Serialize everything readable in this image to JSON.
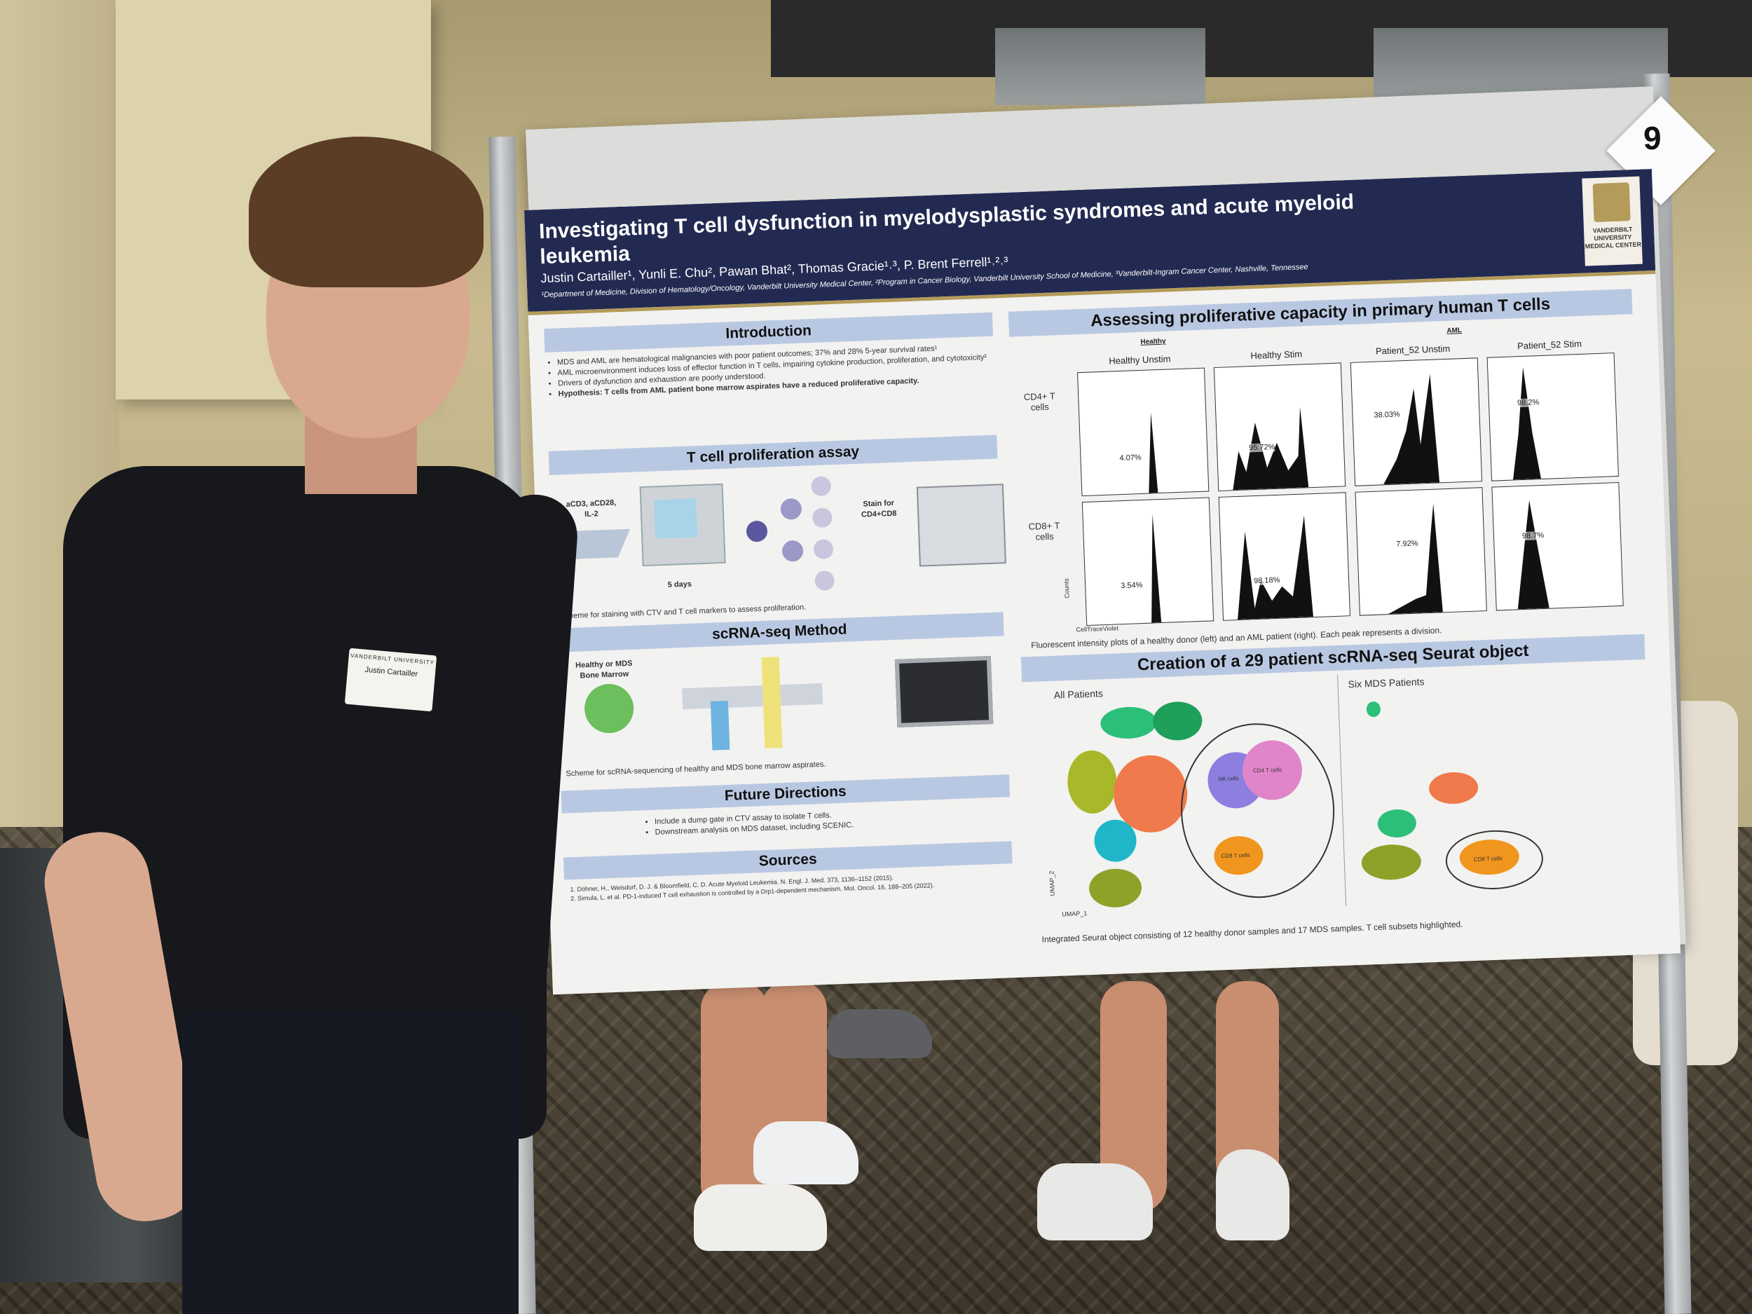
{
  "poster": {
    "title": "Investigating T cell dysfunction in myelodysplastic syndromes and acute myeloid leukemia",
    "authors": "Justin Cartailler¹, Yunli E. Chu², Pawan Bhat², Thomas Gracie¹˒³, P. Brent Ferrell¹˒²˒³",
    "affiliations": "¹Department of Medicine, Division of Hematology/Oncology, Vanderbilt University Medical Center, ²Program in Cancer Biology, Vanderbilt University School of Medicine, ³Vanderbilt-Ingram Cancer Center, Nashville, Tennessee",
    "logo_text": "VANDERBILT UNIVERSITY MEDICAL CENTER",
    "board_number": "9",
    "introduction": {
      "heading": "Introduction",
      "bullets": [
        "MDS and AML are hematological malignancies with poor patient outcomes; 37% and 28% 5-year survival rates¹",
        "AML microenvironment induces loss of effector function in T cells, impairing cytokine production, proliferation, and cytotoxicity²",
        "Drivers of dysfunction and exhaustion are poorly understood.",
        "Hypothesis: T cells from AML patient bone marrow aspirates have a reduced proliferative capacity."
      ]
    },
    "assay": {
      "heading": "T cell proliferation assay",
      "stim_label": "aCD3, aCD28, IL-2",
      "days_label": "5 days",
      "stain_label": "Stain for CD4+CD8",
      "caption": "Scheme for staining with CTV and T cell markers to assess proliferation."
    },
    "scrna": {
      "heading": "scRNA-seq Method",
      "source_label": "Healthy or MDS Bone Marrow",
      "caption": "Scheme for scRNA-sequencing of healthy and MDS bone marrow aspirates."
    },
    "future": {
      "heading": "Future Directions",
      "bullets": [
        "Include a dump gate in CTV assay to isolate T cells.",
        "Downstream analysis on MDS dataset, including SCENIC."
      ]
    },
    "sources": {
      "heading": "Sources",
      "items": [
        "1. Döhner, H., Weisdorf, D. J. & Bloomfield, C. D. Acute Myeloid Leukemia. N. Engl. J. Med. 373, 1136–1152 (2015).",
        "2. Simula, L. et al. PD-1-induced T cell exhaustion is controlled by a Drp1-dependent mechanism. Mol. Oncol. 16, 188–205 (2022)."
      ]
    },
    "proliferation": {
      "heading": "Assessing proliferative capacity in primary human T cells",
      "group_healthy": "Healthy",
      "group_aml": "AML",
      "columns": [
        "Healthy Unstim",
        "Healthy Stim",
        "Patient_52 Unstim",
        "Patient_52 Stim"
      ],
      "rows": [
        "CD4+ T cells",
        "CD8+ T cells"
      ],
      "cd4_percents": [
        "4.07%",
        "95.72%",
        "38.03%",
        "98.2%"
      ],
      "cd8_percents": [
        "3.54%",
        "98.18%",
        "7.92%",
        "98.7%"
      ],
      "xaxis": "CellTraceViolet",
      "yaxis": "Counts",
      "caption": "Fluorescent intensity plots of a healthy donor (left) and an AML patient (right).  Each peak represents a division."
    },
    "seurat": {
      "heading": "Creation of a 29 patient scRNA-seq Seurat object",
      "left_title": "All Patients",
      "right_title": "Six MDS Patients",
      "cluster_cd4": "CD4 T cells",
      "cluster_nk": "NK cells",
      "cluster_cd8": "CD8 T cells",
      "cluster_cd8_right": "CD8 T cells",
      "umap_x": "UMAP_1",
      "umap_y": "UMAP_2",
      "caption": "Integrated Seurat object consisting of 12 healthy donor samples and 17 MDS samples.  T cell subsets highlighted."
    }
  },
  "name_tag": {
    "org": "VANDERBILT UNIVERSITY",
    "name": "Justin Cartailler"
  }
}
